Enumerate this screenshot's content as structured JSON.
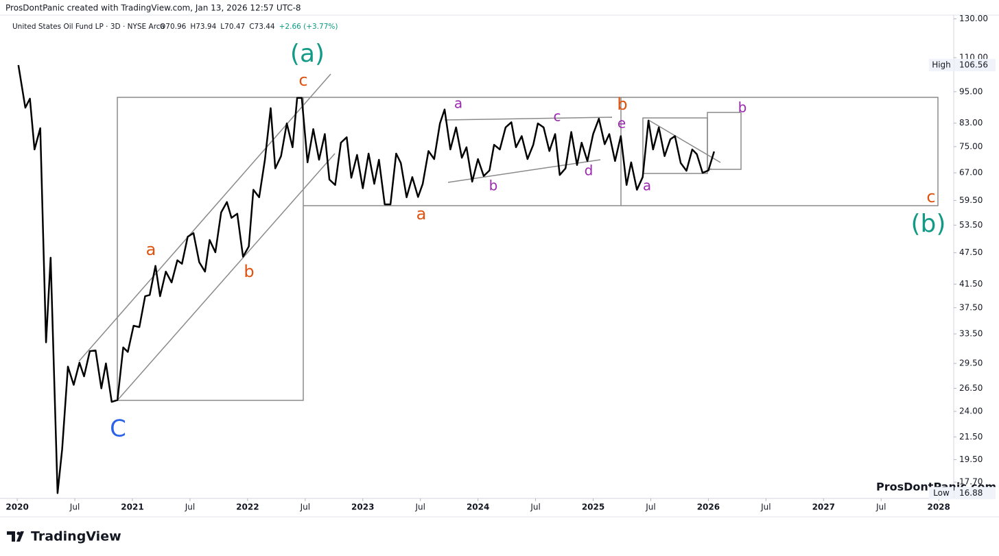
{
  "chart_data": {
    "type": "line",
    "credit": "ProsDontPanic created with TradingView.com, Jan 13, 2026 12:57 UTC-8",
    "title": "United States Oil Fund LP · 3D · NYSE Arca",
    "ohlc": [
      "O70.96",
      "H73.94",
      "L70.47",
      "C73.44",
      "+2.66 (+3.77%)"
    ],
    "watermark": "ProsDontPanic.com",
    "logo": "TradingView",
    "high_label": "High",
    "high": 106.56,
    "low_label": "Low",
    "low": 16.88,
    "log_scale": true,
    "xlim": [
      2019.91,
      2028.13
    ],
    "ylim": [
      16.5,
      141
    ],
    "xticks": [
      2020,
      {
        "value": 2020.5,
        "label": "Jul"
      },
      2021,
      {
        "value": 2021.5,
        "label": "Jul"
      },
      2022,
      {
        "value": 2022.5,
        "label": "Jul"
      },
      2023,
      {
        "value": 2023.5,
        "label": "Jul"
      },
      2024,
      {
        "value": 2024.5,
        "label": "Jul"
      },
      2025,
      {
        "value": 2025.5,
        "label": "Jul"
      },
      2026,
      {
        "value": 2026.5,
        "label": "Jul"
      },
      2027,
      {
        "value": 2027.5,
        "label": "Jul"
      },
      2028
    ],
    "yticks": [
      {
        "value": 130,
        "label": "130.00"
      },
      {
        "value": 110,
        "label": "110.00"
      },
      {
        "value": 95,
        "label": "95.00"
      },
      {
        "value": 83,
        "label": "83.00"
      },
      {
        "value": 75,
        "label": "75.00"
      },
      {
        "value": 67,
        "label": "67.00"
      },
      {
        "value": 59.5,
        "label": "59.50"
      },
      {
        "value": 53.5,
        "label": "53.50"
      },
      {
        "value": 47.5,
        "label": "47.50"
      },
      {
        "value": 41.5,
        "label": "41.50"
      },
      {
        "value": 37.5,
        "label": "37.50"
      },
      {
        "value": 33.5,
        "label": "33.50"
      },
      {
        "value": 29.5,
        "label": "29.50"
      },
      {
        "value": 26.5,
        "label": "26.50"
      },
      {
        "value": 24,
        "label": "24.00"
      },
      {
        "value": 21.5,
        "label": "21.50"
      },
      {
        "value": 19.5,
        "label": "19.50"
      },
      {
        "value": 17.7,
        "label": "17.70"
      }
    ],
    "x": [
      2020.01,
      2020.07,
      2020.11,
      2020.15,
      2020.2,
      2020.25,
      2020.29,
      2020.35,
      2020.39,
      2020.44,
      2020.49,
      2020.54,
      2020.58,
      2020.63,
      2020.68,
      2020.73,
      2020.77,
      2020.82,
      2020.87,
      2020.92,
      2020.96,
      2021.01,
      2021.06,
      2021.11,
      2021.15,
      2021.2,
      2021.24,
      2021.29,
      2021.34,
      2021.39,
      2021.43,
      2021.48,
      2021.53,
      2021.58,
      2021.63,
      2021.67,
      2021.72,
      2021.77,
      2021.82,
      2021.86,
      2021.91,
      2021.96,
      2022.01,
      2022.05,
      2022.1,
      2022.15,
      2022.2,
      2022.24,
      2022.29,
      2022.34,
      2022.39,
      2022.43,
      2022.47,
      2022.52,
      2022.57,
      2022.62,
      2022.67,
      2022.71,
      2022.76,
      2022.81,
      2022.86,
      2022.9,
      2022.95,
      2023.0,
      2023.05,
      2023.1,
      2023.14,
      2023.19,
      2023.24,
      2023.29,
      2023.33,
      2023.38,
      2023.43,
      2023.48,
      2023.52,
      2023.57,
      2023.62,
      2023.67,
      2023.71,
      2023.76,
      2023.81,
      2023.86,
      2023.9,
      2023.95,
      2024.0,
      2024.05,
      2024.1,
      2024.14,
      2024.19,
      2024.24,
      2024.29,
      2024.33,
      2024.38,
      2024.43,
      2024.48,
      2024.52,
      2024.57,
      2024.62,
      2024.67,
      2024.71,
      2024.76,
      2024.81,
      2024.86,
      2024.9,
      2024.95,
      2025.0,
      2025.05,
      2025.1,
      2025.14,
      2025.19,
      2025.24,
      2025.29,
      2025.33,
      2025.38,
      2025.43,
      2025.48,
      2025.52,
      2025.57,
      2025.62,
      2025.67,
      2025.71,
      2025.76,
      2025.81,
      2025.86,
      2025.9,
      2025.95,
      2026.0,
      2026.05
    ],
    "series": [
      {
        "color": "#000000",
        "values": [
          106.56,
          88.7,
          92.2,
          74.1,
          81.2,
          32.3,
          46.5,
          16.88,
          20.4,
          29.1,
          26.9,
          29.6,
          27.9,
          31.1,
          31.2,
          26.5,
          29.5,
          25.0,
          25.2,
          31.6,
          31.0,
          34.7,
          34.5,
          39.4,
          39.6,
          44.9,
          39.4,
          43.8,
          41.8,
          46.0,
          45.3,
          50.9,
          51.7,
          45.6,
          43.8,
          50.2,
          47.6,
          56.5,
          59.1,
          55.2,
          56.2,
          46.7,
          48.8,
          62.3,
          60.3,
          70.9,
          88.5,
          68.3,
          72.0,
          82.9,
          74.8,
          92.5,
          92.5,
          70.1,
          80.9,
          70.9,
          79.2,
          65.1,
          63.6,
          76.3,
          78.1,
          65.6,
          72.4,
          62.7,
          72.8,
          63.9,
          70.9,
          58.5,
          58.5,
          72.8,
          69.9,
          60.3,
          65.8,
          60.4,
          63.9,
          73.6,
          71.1,
          82.9,
          88,
          74.1,
          81.5,
          71.5,
          74.8,
          64.5,
          71.1,
          66.1,
          67.7,
          75.6,
          74.1,
          81.5,
          83.3,
          74.8,
          78.5,
          71.1,
          75.6,
          82.9,
          81.5,
          73.6,
          79.2,
          66.4,
          68.3,
          79.9,
          69.3,
          76.3,
          70.5,
          79.2,
          84.6,
          75.8,
          79.2,
          70.5,
          78.5,
          63.6,
          70.1,
          62.3,
          65.8,
          83.9,
          74.1,
          81.5,
          72.0,
          77.4,
          78.5,
          69.9,
          67.6,
          74.1,
          72.6,
          67.0,
          67.7,
          73.44
        ]
      }
    ],
    "annotations": [
      {
        "text": "(a)",
        "color": "#139a86"
      },
      {
        "text": "c",
        "color": "#e0520f"
      },
      {
        "text": "a",
        "color": "#e0520f"
      },
      {
        "text": "b",
        "color": "#e0520f"
      },
      {
        "text": "C",
        "color": "#2a62e8"
      },
      {
        "text": "a",
        "color": "#e0520f"
      },
      {
        "text": "b",
        "color": "#e0520f"
      },
      {
        "text": "c",
        "color": "#e0520f"
      },
      {
        "text": "(b)",
        "color": "#139a86"
      },
      {
        "text": "a",
        "color": "#9c27b0"
      },
      {
        "text": "c",
        "color": "#9c27b0"
      },
      {
        "text": "b",
        "color": "#9c27b0"
      },
      {
        "text": "d",
        "color": "#9c27b0"
      },
      {
        "text": "e",
        "color": "#9c27b0"
      },
      {
        "text": "a",
        "color": "#9c27b0"
      },
      {
        "text": "b",
        "color": "#9c27b0"
      }
    ]
  }
}
